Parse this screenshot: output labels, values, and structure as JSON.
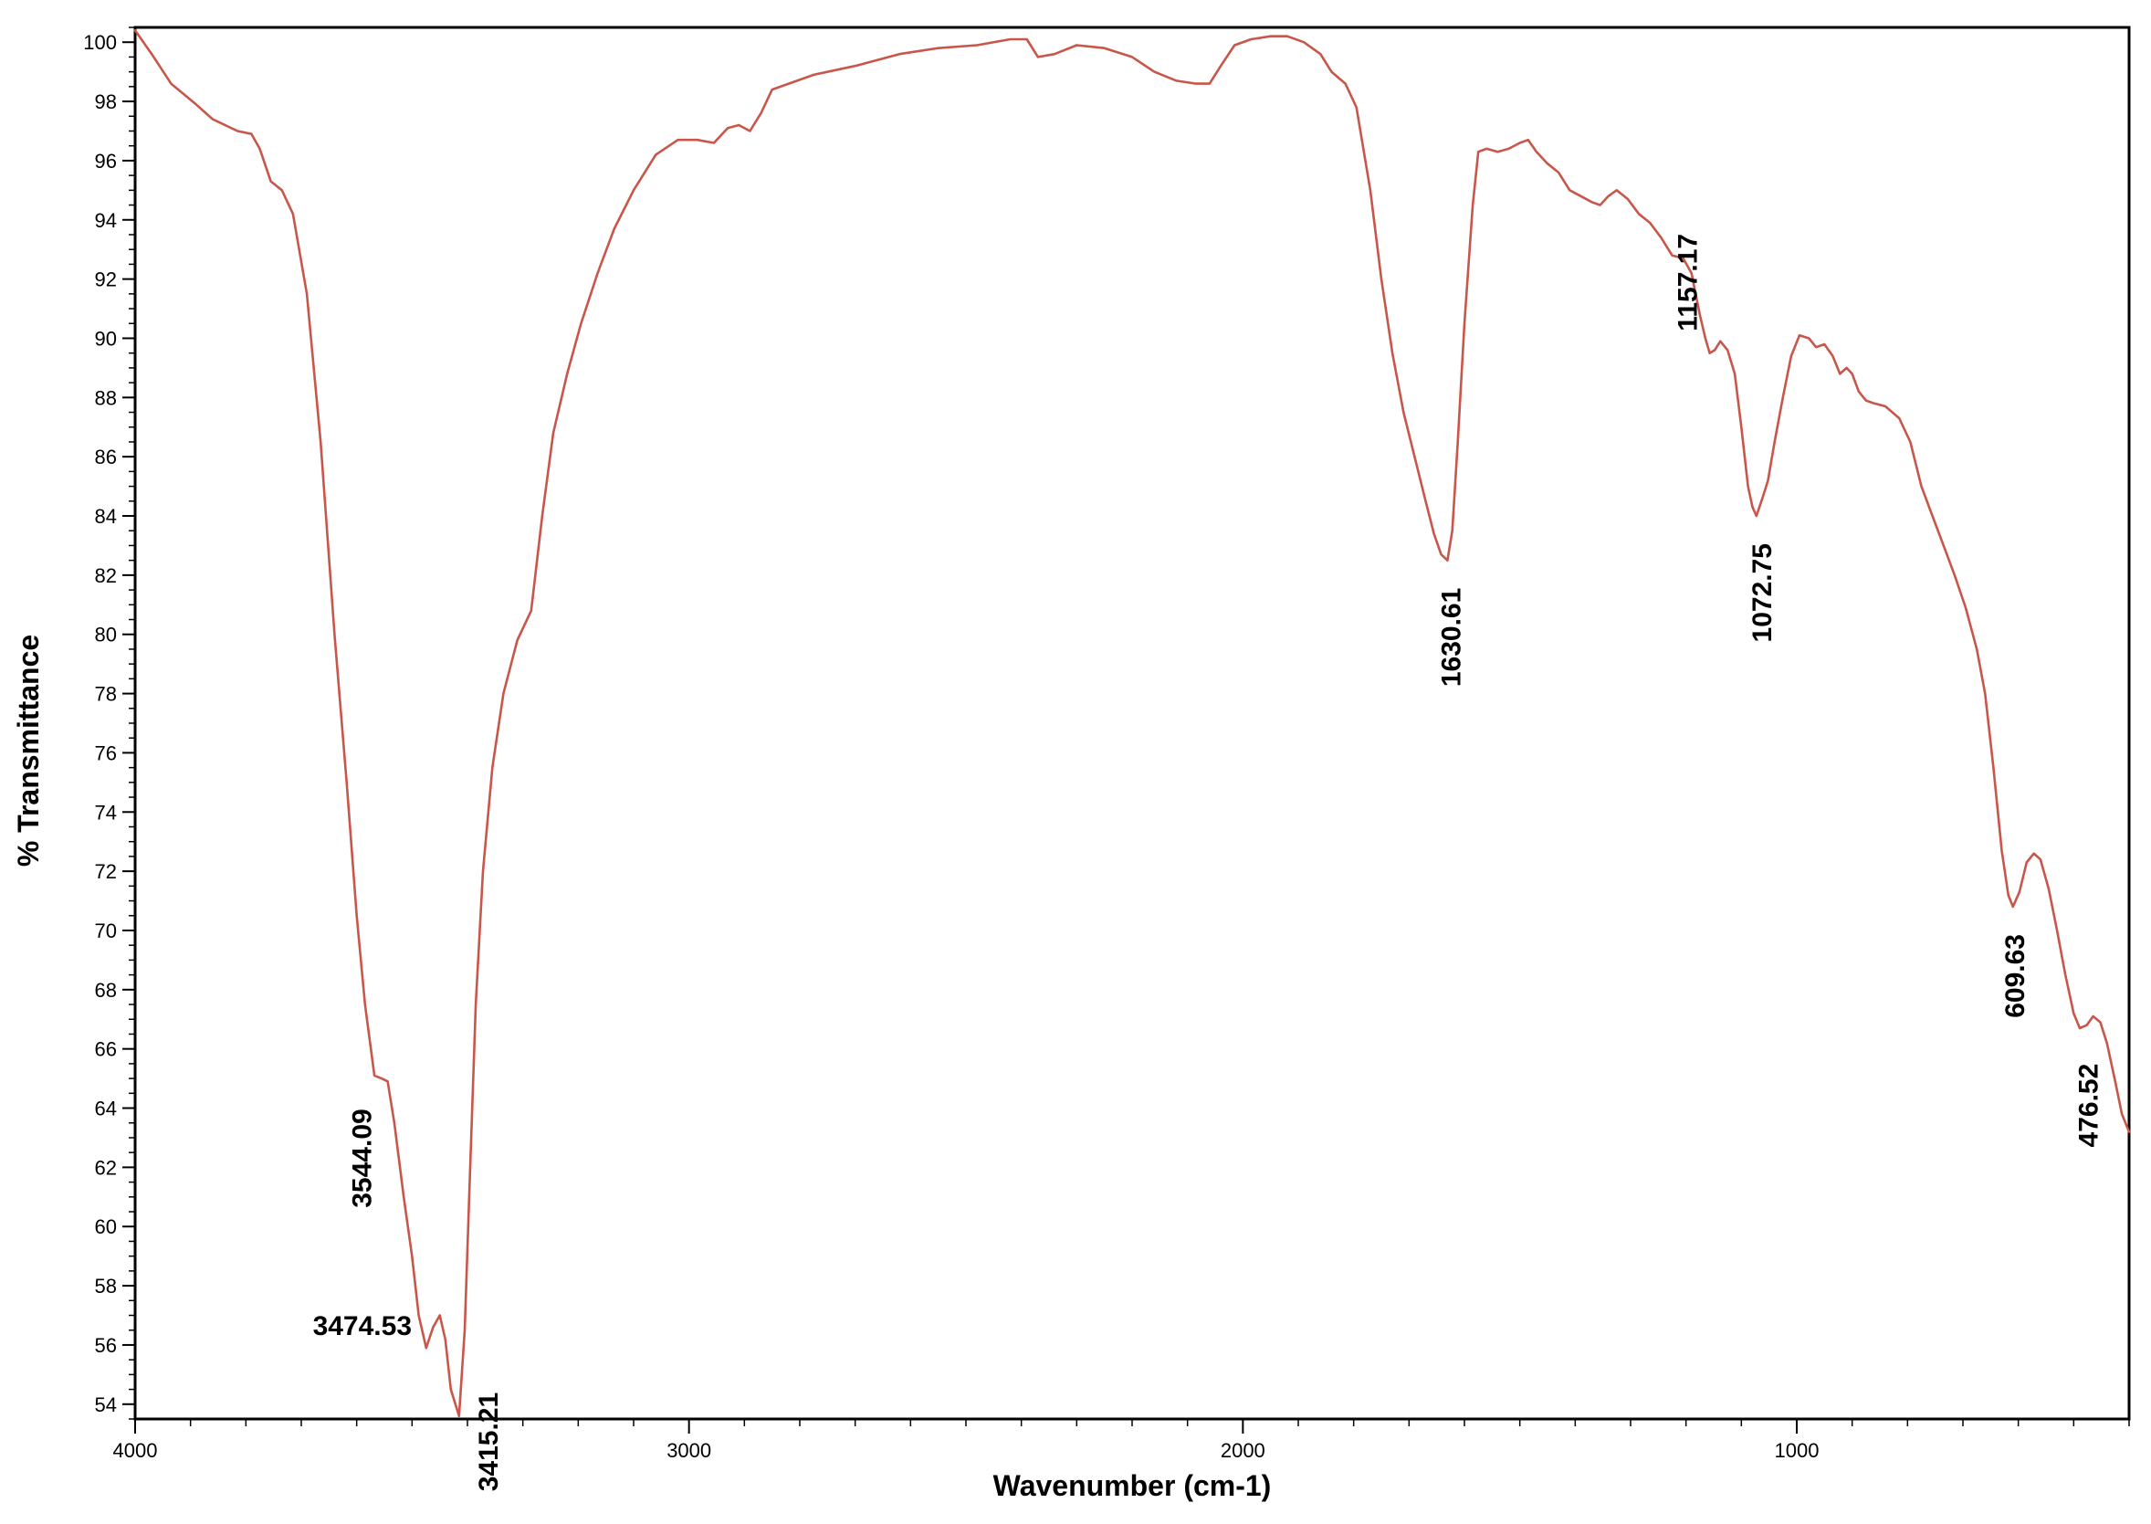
{
  "chart_data": {
    "type": "line",
    "title": "",
    "xlabel": "Wavenumber (cm-1)",
    "ylabel": "% Transmittance",
    "xlim": [
      4000,
      400
    ],
    "ylim": [
      53.5,
      100.5
    ],
    "x_reversed": true,
    "grid": false,
    "legend": "none",
    "line_color": "#c8564a",
    "x_ticks": [
      4000,
      3000,
      2000,
      1000
    ],
    "x_tick_labels": [
      "4000",
      "3000",
      "2000",
      "1000"
    ],
    "y_ticks": [
      54,
      56,
      58,
      60,
      62,
      64,
      66,
      68,
      70,
      72,
      74,
      76,
      78,
      80,
      82,
      84,
      86,
      88,
      90,
      92,
      94,
      96,
      98,
      100
    ],
    "y_tick_labels": [
      "54",
      "56",
      "58",
      "60",
      "62",
      "64",
      "66",
      "68",
      "70",
      "72",
      "74",
      "76",
      "78",
      "80",
      "82",
      "84",
      "86",
      "88",
      "90",
      "92",
      "94",
      "96",
      "98",
      "100"
    ],
    "series": [
      {
        "points": [
          [
            4000,
            100.4
          ],
          [
            3970,
            99.6
          ],
          [
            3935,
            98.6
          ],
          [
            3890,
            97.9
          ],
          [
            3860,
            97.4
          ],
          [
            3815,
            97.0
          ],
          [
            3790,
            96.9
          ],
          [
            3775,
            96.4
          ],
          [
            3755,
            95.3
          ],
          [
            3735,
            95.0
          ],
          [
            3715,
            94.2
          ],
          [
            3690,
            91.5
          ],
          [
            3665,
            86.5
          ],
          [
            3640,
            80.0
          ],
          [
            3618,
            75.0
          ],
          [
            3600,
            70.5
          ],
          [
            3585,
            67.5
          ],
          [
            3568,
            65.1
          ],
          [
            3555,
            65.0
          ],
          [
            3544,
            64.9
          ],
          [
            3532,
            63.5
          ],
          [
            3515,
            61.0
          ],
          [
            3500,
            59.0
          ],
          [
            3488,
            57.0
          ],
          [
            3474.5,
            55.9
          ],
          [
            3462,
            56.6
          ],
          [
            3450,
            57.0
          ],
          [
            3440,
            56.2
          ],
          [
            3430,
            54.5
          ],
          [
            3415.2,
            53.6
          ],
          [
            3405,
            56.5
          ],
          [
            3395,
            62.0
          ],
          [
            3385,
            67.5
          ],
          [
            3372,
            72.0
          ],
          [
            3355,
            75.5
          ],
          [
            3335,
            78.0
          ],
          [
            3310,
            79.8
          ],
          [
            3285,
            80.8
          ],
          [
            3265,
            84.0
          ],
          [
            3245,
            86.8
          ],
          [
            3220,
            88.8
          ],
          [
            3195,
            90.5
          ],
          [
            3165,
            92.2
          ],
          [
            3135,
            93.7
          ],
          [
            3100,
            95.0
          ],
          [
            3060,
            96.2
          ],
          [
            3020,
            96.7
          ],
          [
            2985,
            96.7
          ],
          [
            2955,
            96.6
          ],
          [
            2930,
            97.1
          ],
          [
            2910,
            97.2
          ],
          [
            2890,
            97.0
          ],
          [
            2870,
            97.6
          ],
          [
            2850,
            98.4
          ],
          [
            2820,
            98.6
          ],
          [
            2775,
            98.9
          ],
          [
            2700,
            99.2
          ],
          [
            2620,
            99.6
          ],
          [
            2550,
            99.8
          ],
          [
            2480,
            99.9
          ],
          [
            2420,
            100.1
          ],
          [
            2390,
            100.1
          ],
          [
            2370,
            99.5
          ],
          [
            2340,
            99.6
          ],
          [
            2300,
            99.9
          ],
          [
            2250,
            99.8
          ],
          [
            2200,
            99.5
          ],
          [
            2160,
            99.0
          ],
          [
            2120,
            98.7
          ],
          [
            2085,
            98.6
          ],
          [
            2060,
            98.6
          ],
          [
            2040,
            99.2
          ],
          [
            2015,
            99.9
          ],
          [
            1985,
            100.1
          ],
          [
            1950,
            100.2
          ],
          [
            1920,
            100.2
          ],
          [
            1890,
            100.0
          ],
          [
            1860,
            99.6
          ],
          [
            1840,
            99.0
          ],
          [
            1815,
            98.6
          ],
          [
            1795,
            97.8
          ],
          [
            1770,
            95.0
          ],
          [
            1750,
            92.0
          ],
          [
            1730,
            89.5
          ],
          [
            1710,
            87.5
          ],
          [
            1690,
            86.0
          ],
          [
            1670,
            84.5
          ],
          [
            1655,
            83.4
          ],
          [
            1642,
            82.7
          ],
          [
            1630.6,
            82.5
          ],
          [
            1622,
            83.5
          ],
          [
            1612,
            86.5
          ],
          [
            1600,
            90.5
          ],
          [
            1585,
            94.5
          ],
          [
            1575,
            96.3
          ],
          [
            1560,
            96.4
          ],
          [
            1540,
            96.3
          ],
          [
            1520,
            96.4
          ],
          [
            1500,
            96.6
          ],
          [
            1485,
            96.7
          ],
          [
            1470,
            96.3
          ],
          [
            1450,
            95.9
          ],
          [
            1430,
            95.6
          ],
          [
            1410,
            95.0
          ],
          [
            1390,
            94.8
          ],
          [
            1370,
            94.6
          ],
          [
            1355,
            94.5
          ],
          [
            1340,
            94.8
          ],
          [
            1325,
            95.0
          ],
          [
            1305,
            94.7
          ],
          [
            1285,
            94.2
          ],
          [
            1265,
            93.9
          ],
          [
            1245,
            93.4
          ],
          [
            1225,
            92.8
          ],
          [
            1205,
            92.7
          ],
          [
            1190,
            92.2
          ],
          [
            1175,
            90.8
          ],
          [
            1165,
            90.0
          ],
          [
            1157.2,
            89.5
          ],
          [
            1148,
            89.6
          ],
          [
            1138,
            89.9
          ],
          [
            1125,
            89.6
          ],
          [
            1112,
            88.8
          ],
          [
            1100,
            87.0
          ],
          [
            1088,
            85.0
          ],
          [
            1080,
            84.3
          ],
          [
            1072.8,
            84.0
          ],
          [
            1062,
            84.6
          ],
          [
            1052,
            85.2
          ],
          [
            1040,
            86.5
          ],
          [
            1025,
            88.0
          ],
          [
            1010,
            89.4
          ],
          [
            995,
            90.1
          ],
          [
            978,
            90.0
          ],
          [
            965,
            89.7
          ],
          [
            950,
            89.8
          ],
          [
            935,
            89.4
          ],
          [
            922,
            88.8
          ],
          [
            910,
            89.0
          ],
          [
            900,
            88.8
          ],
          [
            888,
            88.2
          ],
          [
            875,
            87.9
          ],
          [
            860,
            87.8
          ],
          [
            840,
            87.7
          ],
          [
            815,
            87.3
          ],
          [
            795,
            86.5
          ],
          [
            775,
            85.0
          ],
          [
            755,
            84.0
          ],
          [
            735,
            83.0
          ],
          [
            715,
            82.0
          ],
          [
            695,
            80.9
          ],
          [
            675,
            79.5
          ],
          [
            660,
            78.0
          ],
          [
            645,
            75.5
          ],
          [
            630,
            72.7
          ],
          [
            618,
            71.2
          ],
          [
            609.6,
            70.8
          ],
          [
            598,
            71.3
          ],
          [
            585,
            72.3
          ],
          [
            572,
            72.6
          ],
          [
            560,
            72.4
          ],
          [
            545,
            71.4
          ],
          [
            530,
            70.0
          ],
          [
            515,
            68.5
          ],
          [
            500,
            67.2
          ],
          [
            489,
            66.7
          ],
          [
            476.5,
            66.8
          ],
          [
            465,
            67.1
          ],
          [
            452,
            66.9
          ],
          [
            440,
            66.2
          ],
          [
            425,
            64.9
          ],
          [
            413,
            63.8
          ],
          [
            400,
            63.2
          ]
        ]
      }
    ],
    "annotations": [
      {
        "text": "3544.09",
        "x": 3544.09,
        "y": 64.9
      },
      {
        "text": "3474.53",
        "x": 3474.53,
        "y": 55.9
      },
      {
        "text": "3415.21",
        "x": 3415.21,
        "y": 53.6
      },
      {
        "text": "1630.61",
        "x": 1630.61,
        "y": 82.5
      },
      {
        "text": "1157.17",
        "x": 1157.17,
        "y": 89.5
      },
      {
        "text": "1072.75",
        "x": 1072.75,
        "y": 84.0
      },
      {
        "text": "609.63",
        "x": 609.63,
        "y": 70.8
      },
      {
        "text": "476.52",
        "x": 476.52,
        "y": 66.8
      }
    ]
  }
}
